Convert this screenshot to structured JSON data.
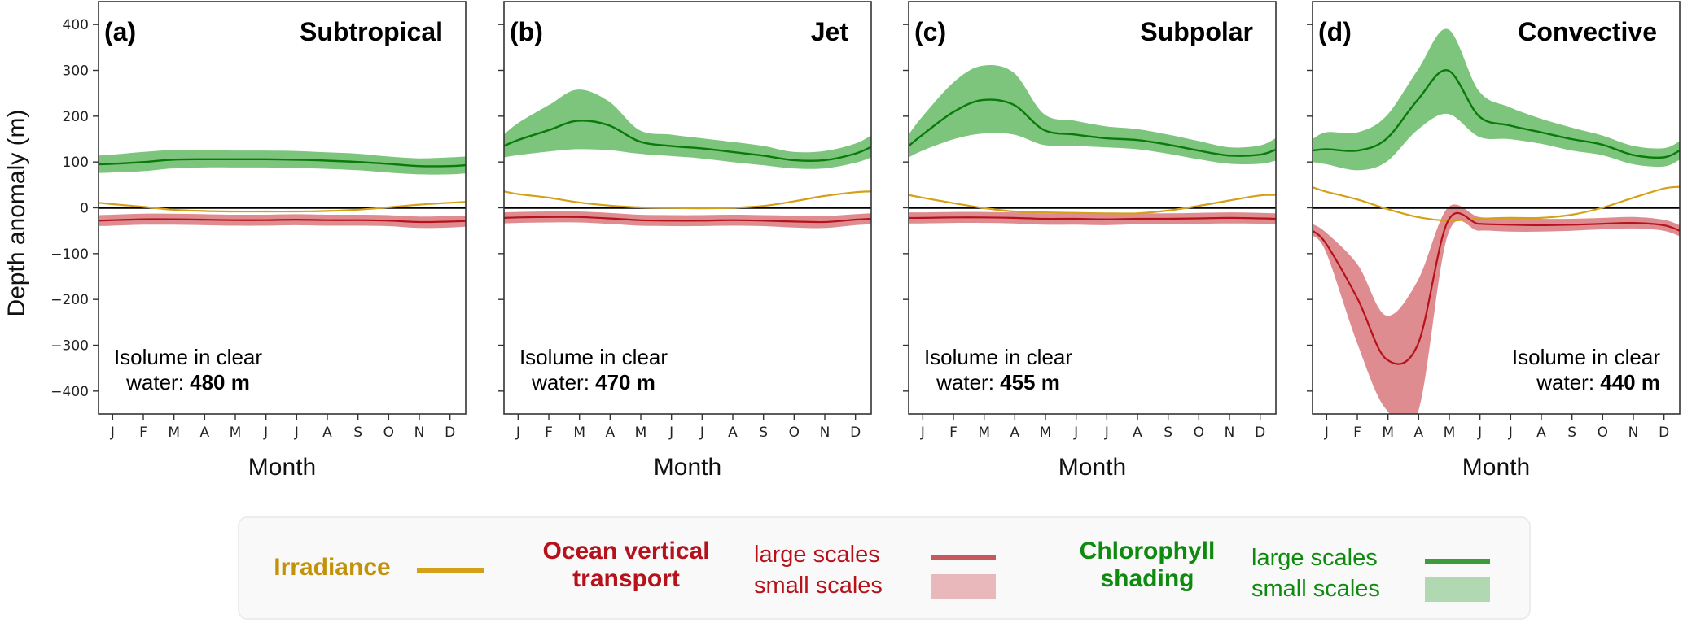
{
  "colors": {
    "irradiance": "#d4a017",
    "irradiance_text": "#c4920a",
    "transport_line": "#b5121b",
    "transport_band": "#d9787e",
    "transport_text": "#b5121b",
    "transport_legend_line": "#c45a5e",
    "transport_legend_patch": "#e8b8ba",
    "chl_line": "#0a7a0a",
    "chl_band": "#6fbf6f",
    "chl_text": "#0e8a0e",
    "chl_legend_line": "#3d9a3d",
    "chl_legend_patch": "#b1d9b1",
    "zero_line": "#000000"
  },
  "legend": {
    "irradiance": "Irradiance",
    "transport_line1": "Ocean vertical",
    "transport_line2": "transport",
    "chl_line1": "Chlorophyll",
    "chl_line2": "shading",
    "large_scales": "large scales",
    "small_scales": "small scales"
  },
  "chart_data": {
    "type": "line",
    "ylabel": "Depth anomaly (m)",
    "xlabel": "Month",
    "ylim": [
      -450,
      450
    ],
    "yticks": [
      400,
      300,
      200,
      100,
      0,
      -100,
      -200,
      -300,
      -400
    ],
    "ytick_labels": [
      "400",
      "300",
      "200",
      "100",
      "0",
      "−100",
      "−200",
      "−300",
      "−400"
    ],
    "xticks": [
      "J",
      "F",
      "M",
      "A",
      "M",
      "J",
      "J",
      "A",
      "S",
      "O",
      "N",
      "D"
    ],
    "x_day_of_year": [
      1,
      15,
      46,
      74,
      105,
      135,
      166,
      196,
      227,
      258,
      288,
      319,
      349,
      365
    ],
    "grid": false,
    "panels": [
      {
        "letter": "(a)",
        "title": "Subtropical",
        "isolume_label": "Isolume in clear",
        "isolume_prefix": "water: ",
        "isolume_value": "480 m",
        "isolume_align": "left",
        "series": {
          "chlorophyll": {
            "mean": [
              95,
              96,
              100,
              105,
              106,
              106,
              106,
              105,
              103,
              100,
              96,
              91,
              91,
              93
            ],
            "lower": [
              76,
              77,
              80,
              86,
              88,
              88,
              88,
              87,
              85,
              82,
              77,
              73,
              73,
              75
            ],
            "upper": [
              114,
              116,
              122,
              126,
              126,
              125,
              125,
              124,
              121,
              118,
              112,
              108,
              110,
              112
            ]
          },
          "irradiance": [
            11,
            8,
            2,
            -4,
            -7,
            -8,
            -8,
            -8,
            -7,
            -4,
            1,
            7,
            11,
            13
          ],
          "transport": {
            "mean": [
              -28,
              -27,
              -25,
              -25,
              -26,
              -27,
              -27,
              -26,
              -27,
              -27,
              -28,
              -31,
              -30,
              -29
            ],
            "lower": [
              -40,
              -39,
              -37,
              -37,
              -38,
              -39,
              -39,
              -38,
              -39,
              -39,
              -40,
              -44,
              -43,
              -41
            ],
            "upper": [
              -16,
              -15,
              -13,
              -13,
              -14,
              -15,
              -15,
              -14,
              -15,
              -15,
              -16,
              -19,
              -18,
              -17
            ]
          }
        }
      },
      {
        "letter": "(b)",
        "title": "Jet",
        "isolume_label": "Isolume in clear",
        "isolume_prefix": "water: ",
        "isolume_value": "470 m",
        "isolume_align": "left",
        "series": {
          "chlorophyll": {
            "mean": [
              135,
              148,
              170,
              190,
              180,
              145,
              135,
              130,
              122,
              114,
              104,
              104,
              118,
              133
            ],
            "lower": [
              110,
              115,
              123,
              128,
              126,
              118,
              113,
              108,
              100,
              93,
              86,
              86,
              98,
              110
            ],
            "upper": [
              160,
              185,
              225,
              258,
              232,
              170,
              160,
              152,
              144,
              135,
              122,
              124,
              140,
              158
            ]
          },
          "irradiance": [
            36,
            30,
            22,
            12,
            5,
            1,
            0,
            -1,
            0,
            4,
            14,
            26,
            34,
            36
          ],
          "transport": {
            "mean": [
              -22,
              -21,
              -20,
              -20,
              -23,
              -27,
              -28,
              -28,
              -27,
              -28,
              -30,
              -31,
              -26,
              -24
            ],
            "lower": [
              -34,
              -33,
              -32,
              -32,
              -35,
              -39,
              -40,
              -40,
              -39,
              -40,
              -43,
              -44,
              -38,
              -36
            ],
            "upper": [
              -10,
              -9,
              -8,
              -8,
              -11,
              -15,
              -16,
              -16,
              -15,
              -16,
              -17,
              -18,
              -14,
              -12
            ]
          }
        }
      },
      {
        "letter": "(c)",
        "title": "Subpolar",
        "isolume_label": "Isolume in clear",
        "isolume_prefix": "water: ",
        "isolume_value": "455 m",
        "isolume_align": "left",
        "series": {
          "chlorophyll": {
            "mean": [
              135,
              160,
              210,
              235,
              225,
              170,
              160,
              152,
              148,
              138,
              125,
              114,
              116,
              127
            ],
            "lower": [
              110,
              125,
              150,
              162,
              160,
              137,
              135,
              132,
              128,
              118,
              106,
              96,
              96,
              103
            ],
            "upper": [
              160,
              200,
              275,
              310,
              295,
              205,
              190,
              178,
              172,
              160,
              146,
              132,
              136,
              152
            ]
          },
          "irradiance": [
            28,
            22,
            10,
            0,
            -8,
            -10,
            -11,
            -12,
            -12,
            -6,
            4,
            16,
            27,
            28
          ],
          "transport": {
            "mean": [
              -22,
              -22,
              -21,
              -21,
              -22,
              -24,
              -24,
              -25,
              -24,
              -24,
              -23,
              -22,
              -23,
              -24
            ],
            "lower": [
              -34,
              -34,
              -33,
              -33,
              -34,
              -37,
              -37,
              -38,
              -36,
              -36,
              -35,
              -34,
              -35,
              -36
            ],
            "upper": [
              -10,
              -10,
              -9,
              -9,
              -10,
              -12,
              -12,
              -13,
              -12,
              -12,
              -11,
              -10,
              -11,
              -12
            ]
          }
        }
      },
      {
        "letter": "(d)",
        "title": "Convective",
        "isolume_label": "Isolume in clear",
        "isolume_prefix": "water: ",
        "isolume_value": "440 m",
        "isolume_align": "right",
        "series": {
          "chlorophyll": {
            "mean": [
              125,
              128,
              125,
              150,
              235,
              300,
              200,
              180,
              165,
              150,
              138,
              115,
              110,
              125
            ],
            "lower": [
              100,
              95,
              82,
              100,
              170,
              205,
              155,
              150,
              140,
              125,
              115,
              95,
              90,
              105
            ],
            "upper": [
              150,
              165,
              165,
              200,
              300,
              390,
              255,
              220,
              195,
              175,
              158,
              135,
              130,
              145
            ]
          },
          "irradiance": [
            45,
            35,
            18,
            -2,
            -20,
            -28,
            -24,
            -22,
            -22,
            -15,
            0,
            22,
            42,
            46
          ],
          "transport": {
            "mean": [
              -50,
              -80,
              -200,
              -330,
              -300,
              -30,
              -35,
              -37,
              -38,
              -37,
              -35,
              -33,
              -38,
              -50
            ],
            "lower": [
              -60,
              -100,
              -300,
              -440,
              -450,
              -60,
              -50,
              -52,
              -52,
              -50,
              -47,
              -45,
              -50,
              -62
            ],
            "upper": [
              -35,
              -55,
              -125,
              -235,
              -160,
              0,
              -20,
              -22,
              -24,
              -24,
              -22,
              -20,
              -26,
              -38
            ]
          }
        }
      }
    ]
  }
}
